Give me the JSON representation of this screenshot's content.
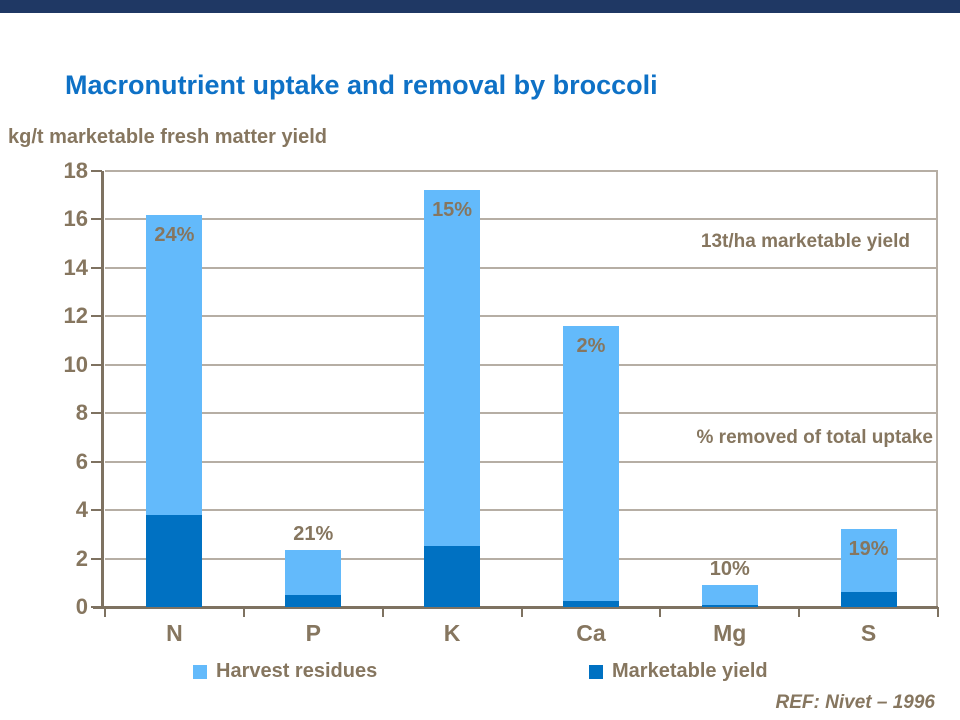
{
  "title": "Macronutrient uptake and removal by broccoli",
  "y_axis_label": "kg/t marketable fresh matter yield",
  "annotations": {
    "yield_note": "13t/ha marketable yield",
    "pct_note": "% removed of total uptake"
  },
  "reference": "REF: Nivet – 1996",
  "legend": [
    {
      "label": "Harvest residues",
      "color": "#63BAFB"
    },
    {
      "label": "Marketable yield",
      "color": "#0071C2"
    }
  ],
  "colors": {
    "top_bar": "#1F3864",
    "title_text": "#0E71C6",
    "body_text": "#86765F",
    "gridline": "#B6AEA4",
    "axis": "#7E7261",
    "harvest_residues": "#63BAFB",
    "marketable_yield": "#0071C2"
  },
  "chart_data": {
    "type": "bar",
    "stacked": true,
    "title": "Macronutrient uptake and removal by broccoli",
    "xlabel": "",
    "ylabel": "kg/t marketable fresh matter yield",
    "categories": [
      "N",
      "P",
      "K",
      "Ca",
      "Mg",
      "S"
    ],
    "series": [
      {
        "name": "Marketable yield",
        "color": "#0071C2",
        "values": [
          3.8,
          0.5,
          2.5,
          0.25,
          0.08,
          0.6
        ]
      },
      {
        "name": "Harvest residues",
        "color": "#63BAFB",
        "values": [
          12.4,
          1.85,
          14.7,
          11.35,
          0.82,
          2.6
        ]
      }
    ],
    "totals": [
      16.2,
      2.35,
      17.2,
      11.6,
      0.9,
      3.2
    ],
    "bar_labels": [
      "24%",
      "21%",
      "15%",
      "2%",
      "10%",
      "19%"
    ],
    "bar_label_position": [
      "inside",
      "above",
      "inside",
      "inside",
      "above",
      "inside"
    ],
    "removed_pct_of_total_uptake": [
      24,
      21,
      15,
      2,
      10,
      19
    ],
    "ylim": [
      0,
      18
    ],
    "ytick_step": 2,
    "grid": true,
    "legend_position": "bottom"
  }
}
